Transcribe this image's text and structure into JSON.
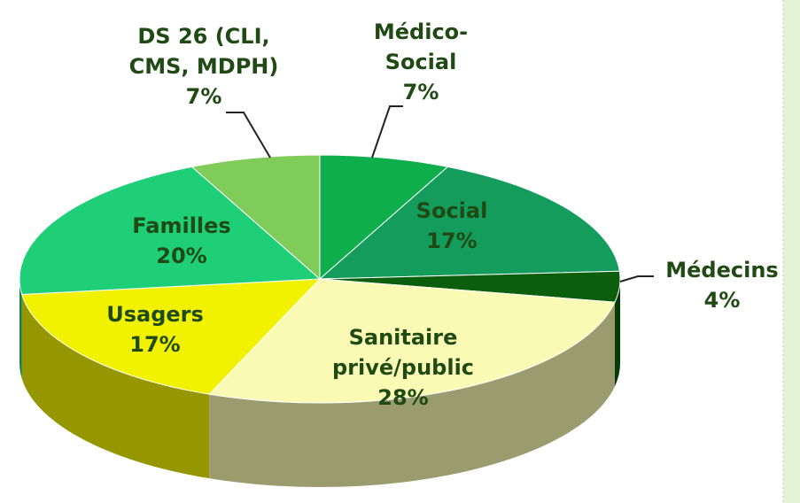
{
  "chart_data": {
    "type": "pie3d",
    "categories": [
      "Médico-Social",
      "Social",
      "Médecins",
      "Sanitaire privé/public",
      "Usagers",
      "Familles",
      "DS 26 (CLI, CMS, MDPH)"
    ],
    "values": [
      7,
      17,
      4,
      28,
      17,
      20,
      7
    ],
    "value_labels": [
      "7%",
      "17%",
      "4%",
      "28%",
      "17%",
      "20%",
      "7%"
    ],
    "colors": [
      "#0fae4c",
      "#149c5c",
      "#0b5e0b",
      "#fafab4",
      "#f2f200",
      "#1ecf78",
      "#7fcc5a"
    ]
  }
}
